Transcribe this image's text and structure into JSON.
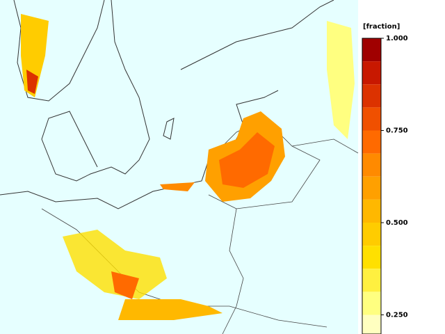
{
  "legend": {
    "title": "[fraction]",
    "ticks": [
      {
        "value": 1,
        "label": "1.000"
      },
      {
        "value": 0.75,
        "label": "0.750"
      },
      {
        "value": 0.5,
        "label": "0.500"
      },
      {
        "value": 0.25,
        "label": "0.250"
      }
    ],
    "levels": [
      1,
      0.9375,
      0.875,
      0.8125,
      0.75,
      0.6875,
      0.625,
      0.5625,
      0.5,
      0.4375,
      0.375,
      0.3125,
      0.25,
      0.1875
    ],
    "colors": [
      "#a00000",
      "#c81800",
      "#dc3200",
      "#f05000",
      "#ff6a00",
      "#ff8a00",
      "#ffa000",
      "#ffb800",
      "#ffcc00",
      "#ffe000",
      "#fff040",
      "#ffff80",
      "#ffffc0"
    ]
  }
}
